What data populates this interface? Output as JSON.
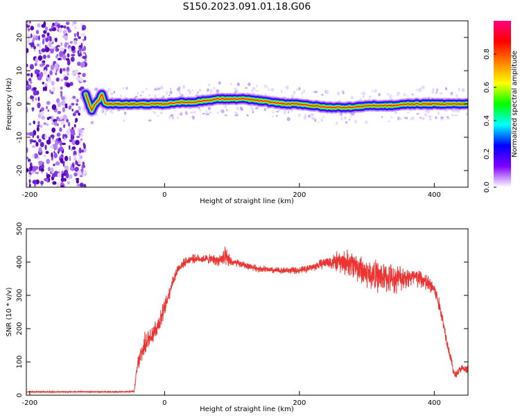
{
  "title": "S150.2023.091.01.18.G06",
  "chart_data": [
    {
      "type": "heatmap",
      "xlabel": "Height of straight line (km)",
      "ylabel": "Frequency (Hz)",
      "xlim": [
        -205,
        450
      ],
      "ylim": [
        -25,
        25
      ],
      "xticks": [
        -200,
        0,
        200,
        400
      ],
      "yticks": [
        -20,
        -10,
        0,
        10,
        20
      ],
      "grid": false,
      "noise_region_x": [
        -205,
        -117
      ],
      "ridge": {
        "description_free_values": true,
        "x": [
          -117,
          -112,
          -108,
          -103,
          -98,
          -93,
          -88,
          -80,
          -60,
          -40,
          -20,
          0,
          20,
          40,
          60,
          80,
          100,
          120,
          140,
          160,
          180,
          200,
          220,
          240,
          260,
          280,
          300,
          320,
          340,
          360,
          380,
          400,
          420,
          450
        ],
        "y": [
          3,
          0,
          -2,
          0,
          1,
          3,
          0,
          0,
          0,
          0,
          0,
          0,
          0.5,
          0.5,
          1,
          1.5,
          1.5,
          1.5,
          1,
          0.5,
          0,
          0,
          -0.5,
          -1,
          -1,
          -1,
          -0.5,
          -0.5,
          -0.5,
          0,
          0,
          0,
          0,
          0
        ],
        "amplitude": 0.95
      },
      "colorbar": {
        "label": "Normalized spectral amplitude",
        "range": [
          0,
          1
        ],
        "ticks": [
          "0.0",
          "0.2",
          "0.4",
          "0.6",
          "0.8"
        ],
        "colors": [
          "#ffffff",
          "#8000ff",
          "#0000ff",
          "#00ffff",
          "#00ff00",
          "#ffff00",
          "#ff8000",
          "#ff0000",
          "#ff0080"
        ]
      }
    },
    {
      "type": "line",
      "xlabel": "Height of straight line (km)",
      "ylabel": "SNR (10 * v/v)",
      "xlim": [
        -205,
        450
      ],
      "ylim": [
        0,
        500
      ],
      "xticks": [
        -200,
        0,
        200,
        400
      ],
      "yticks": [
        0,
        100,
        200,
        300,
        400,
        500
      ],
      "grid": false,
      "series": [
        {
          "color": "#ee3333",
          "x": [
            -205,
            -150,
            -100,
            -60,
            -45,
            -40,
            -30,
            -20,
            -10,
            0,
            10,
            20,
            30,
            40,
            60,
            80,
            90,
            100,
            120,
            140,
            160,
            180,
            200,
            220,
            240,
            260,
            280,
            300,
            320,
            340,
            360,
            380,
            400,
            410,
            420,
            430,
            440,
            450
          ],
          "y": [
            10,
            10,
            10,
            10,
            12,
            90,
            150,
            180,
            210,
            260,
            330,
            380,
            400,
            410,
            410,
            405,
            410,
            400,
            390,
            380,
            375,
            375,
            375,
            385,
            400,
            400,
            395,
            365,
            355,
            350,
            355,
            350,
            320,
            250,
            150,
            60,
            80,
            75
          ],
          "noise": [
            2,
            2,
            2,
            2,
            3,
            30,
            40,
            40,
            40,
            30,
            25,
            20,
            15,
            15,
            15,
            20,
            40,
            15,
            12,
            12,
            12,
            12,
            12,
            15,
            20,
            40,
            50,
            55,
            55,
            50,
            40,
            35,
            30,
            25,
            20,
            15,
            15,
            15
          ]
        }
      ]
    }
  ]
}
